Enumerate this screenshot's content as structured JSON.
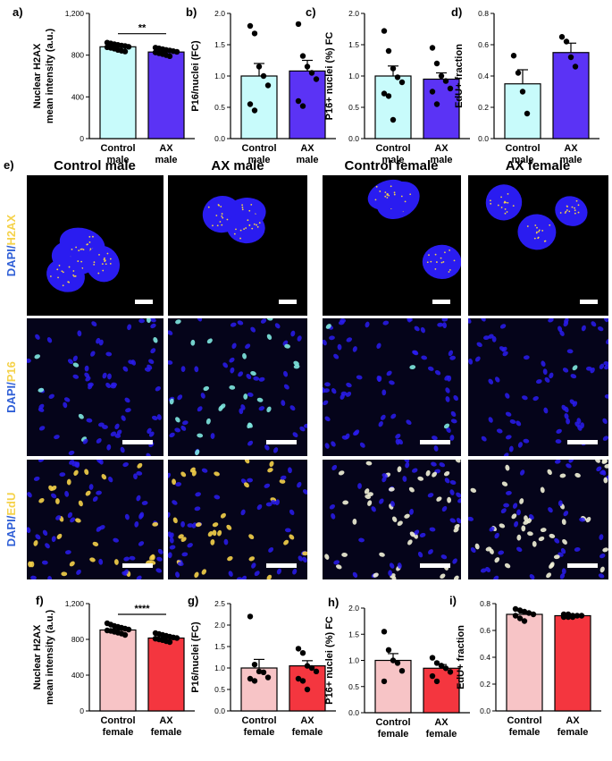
{
  "colors": {
    "control_male": "#c8fbfb",
    "ax_male": "#5b33f5",
    "control_female": "#f7c4c6",
    "ax_female": "#f4363f",
    "nuclei_blue": "#2a1cf0",
    "h2ax_yellow": "#f5d24a",
    "p16_cyan": "#7fe8e0",
    "edu_white": "#f2f2d8"
  },
  "chart_data": [
    {
      "panel": "a)",
      "type": "bar",
      "ylabel_line1": "Nuclear H2AX",
      "ylabel_line2": "mean intensity (a.u.)",
      "yticks": [
        "0",
        "400",
        "800",
        "1,200"
      ],
      "ylim": [
        0,
        1200
      ],
      "categories": [
        [
          "Control",
          "male"
        ],
        [
          "AX",
          "male"
        ]
      ],
      "values": [
        880,
        830
      ],
      "errors": [
        12,
        11
      ],
      "significance": "**",
      "points": [
        [
          920,
          912,
          905,
          898,
          892,
          888,
          880,
          876,
          870,
          862,
          850,
          842,
          835
        ],
        [
          872,
          865,
          858,
          850,
          845,
          838,
          832,
          826,
          818,
          810,
          800,
          790
        ]
      ]
    },
    {
      "panel": "b)",
      "type": "bar",
      "ylabel_line1": "P16/nuclei (FC)",
      "ylabel_line2": "",
      "yticks": [
        "0.0",
        "0.5",
        "1.0",
        "1.5",
        "2.0"
      ],
      "ylim": [
        0,
        2.0
      ],
      "categories": [
        [
          "Control",
          "male"
        ],
        [
          "AX",
          "male"
        ]
      ],
      "values": [
        1.0,
        1.08
      ],
      "errors": [
        0.2,
        0.17
      ],
      "significance": "",
      "points": [
        [
          1.8,
          1.68,
          1.15,
          1.0,
          0.85,
          0.55,
          0.45
        ],
        [
          1.83,
          1.32,
          1.15,
          1.05,
          0.95,
          0.6,
          0.52
        ]
      ]
    },
    {
      "panel": "c)",
      "type": "bar",
      "ylabel_line1": "P16+ nuclei (%) FC",
      "ylabel_line2": "",
      "yticks": [
        "0.0",
        "0.5",
        "1.0",
        "1.5",
        "2.0"
      ],
      "ylim": [
        0,
        2.0
      ],
      "categories": [
        [
          "Control",
          "male"
        ],
        [
          "AX",
          "male"
        ]
      ],
      "values": [
        1.0,
        0.95
      ],
      "errors": [
        0.16,
        0.1
      ],
      "significance": "",
      "points": [
        [
          1.72,
          1.4,
          1.12,
          0.98,
          0.9,
          0.72,
          0.68,
          0.3
        ],
        [
          1.45,
          1.2,
          1.0,
          0.92,
          0.8,
          0.75,
          0.55
        ]
      ]
    },
    {
      "panel": "d)",
      "type": "bar",
      "ylabel_line1": "EdU+ fraction",
      "ylabel_line2": "",
      "yticks": [
        "0.0",
        "0.2",
        "0.4",
        "0.6",
        "0.8"
      ],
      "ylim": [
        0,
        0.8
      ],
      "categories": [
        [
          "Control",
          "male"
        ],
        [
          "AX",
          "male"
        ]
      ],
      "values": [
        0.35,
        0.55
      ],
      "errors": [
        0.09,
        0.06
      ],
      "significance": "",
      "points": [
        [
          0.53,
          0.42,
          0.3,
          0.16
        ],
        [
          0.65,
          0.62,
          0.52,
          0.46
        ]
      ]
    },
    {
      "panel": "f)",
      "type": "bar",
      "ylabel_line1": "Nuclear H2AX",
      "ylabel_line2": "mean intensity (a.u.)",
      "yticks": [
        "0",
        "400",
        "800",
        "1,200"
      ],
      "ylim": [
        0,
        1200
      ],
      "categories": [
        [
          "Control",
          "female"
        ],
        [
          "AX",
          "female"
        ]
      ],
      "values": [
        905,
        815
      ],
      "errors": [
        12,
        10
      ],
      "significance": "****",
      "points": [
        [
          980,
          965,
          950,
          940,
          930,
          920,
          910,
          900,
          895,
          885,
          875,
          865,
          850
        ],
        [
          870,
          860,
          850,
          840,
          830,
          822,
          815,
          808,
          800,
          792,
          780,
          770
        ]
      ]
    },
    {
      "panel": "g)",
      "type": "bar",
      "ylabel_line1": "P16/nuclei (FC)",
      "ylabel_line2": "",
      "yticks": [
        "0.0",
        "0.5",
        "1.0",
        "1.5",
        "2.0",
        "2.5"
      ],
      "ylim": [
        0,
        2.5
      ],
      "categories": [
        [
          "Control",
          "female"
        ],
        [
          "AX",
          "female"
        ]
      ],
      "values": [
        1.0,
        1.05
      ],
      "errors": [
        0.2,
        0.12
      ],
      "significance": "",
      "points": [
        [
          2.2,
          1.08,
          0.92,
          0.9,
          0.78,
          0.75,
          0.7
        ],
        [
          1.45,
          1.35,
          1.05,
          1.0,
          0.92,
          0.75,
          0.7,
          0.5
        ]
      ]
    },
    {
      "panel": "h)",
      "type": "bar",
      "ylabel_line1": "P16+ nuclei (%) FC",
      "ylabel_line2": "",
      "yticks": [
        "0.0",
        "0.5",
        "1.0",
        "1.5",
        "2.0"
      ],
      "ylim": [
        0,
        2.0
      ],
      "categories": [
        [
          "Control",
          "female"
        ],
        [
          "AX",
          "female"
        ]
      ],
      "values": [
        1.0,
        0.85
      ],
      "errors": [
        0.13,
        0.07
      ],
      "significance": "",
      "points": [
        [
          1.55,
          1.2,
          1.0,
          0.95,
          0.8,
          0.6
        ],
        [
          1.05,
          0.95,
          0.9,
          0.85,
          0.78,
          0.7,
          0.6
        ]
      ]
    },
    {
      "panel": "i)",
      "type": "bar",
      "ylabel_line1": "EdU+ fraction",
      "ylabel_line2": "",
      "yticks": [
        "0.0",
        "0.2",
        "0.4",
        "0.6",
        "0.8"
      ],
      "ylim": [
        0,
        0.8
      ],
      "categories": [
        [
          "Control",
          "female"
        ],
        [
          "AX",
          "female"
        ]
      ],
      "values": [
        0.72,
        0.71
      ],
      "errors": [
        0.01,
        0.005
      ],
      "significance": "",
      "points": [
        [
          0.76,
          0.75,
          0.74,
          0.73,
          0.72,
          0.71,
          0.69,
          0.67
        ],
        [
          0.72,
          0.72,
          0.71,
          0.71,
          0.71,
          0.7,
          0.7,
          0.7
        ]
      ]
    }
  ],
  "micrographs": {
    "panel": "e)",
    "column_titles": [
      "Control male",
      "AX male",
      "Control female",
      "AX female"
    ],
    "row_labels": [
      {
        "dapi": "DAPI",
        "sep": "/",
        "marker": "H2AX"
      },
      {
        "dapi": "DAPI",
        "sep": "/",
        "marker": "P16"
      },
      {
        "dapi": "DAPI",
        "sep": "/",
        "marker": "EdU"
      }
    ]
  }
}
